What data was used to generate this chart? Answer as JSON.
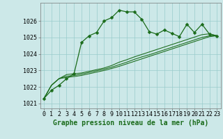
{
  "title": "Graphe pression niveau de la mer (hPa)",
  "bg_color": "#cce8e8",
  "grid_color": "#99cccc",
  "line_color": "#1a6b1a",
  "xlim": [
    -0.5,
    23.5
  ],
  "ylim": [
    1020.7,
    1027.1
  ],
  "yticks": [
    1021,
    1022,
    1023,
    1024,
    1025,
    1026
  ],
  "xticks": [
    0,
    1,
    2,
    3,
    4,
    5,
    6,
    7,
    8,
    9,
    10,
    11,
    12,
    13,
    14,
    15,
    16,
    17,
    18,
    19,
    20,
    21,
    22,
    23
  ],
  "series_main": [
    1021.3,
    1021.8,
    1022.1,
    1022.5,
    1022.8,
    1024.7,
    1025.1,
    1025.3,
    1026.0,
    1026.2,
    1026.65,
    1026.55,
    1026.55,
    1026.1,
    1025.35,
    1025.2,
    1025.45,
    1025.25,
    1025.05,
    1025.8,
    1025.3,
    1025.8,
    1025.2,
    1025.1
  ],
  "series_trend1": [
    1021.3,
    1022.1,
    1022.5,
    1022.75,
    1022.8,
    1022.85,
    1022.95,
    1023.05,
    1023.15,
    1023.3,
    1023.5,
    1023.65,
    1023.82,
    1023.97,
    1024.12,
    1024.27,
    1024.42,
    1024.57,
    1024.72,
    1024.87,
    1025.02,
    1025.17,
    1025.22,
    1025.1
  ],
  "series_trend2": [
    1021.3,
    1022.1,
    1022.5,
    1022.65,
    1022.7,
    1022.78,
    1022.88,
    1022.98,
    1023.08,
    1023.2,
    1023.35,
    1023.5,
    1023.67,
    1023.82,
    1023.95,
    1024.1,
    1024.25,
    1024.4,
    1024.55,
    1024.7,
    1024.85,
    1025.0,
    1025.1,
    1025.1
  ],
  "series_trend3": [
    1021.3,
    1022.1,
    1022.5,
    1022.58,
    1022.63,
    1022.7,
    1022.8,
    1022.9,
    1023.0,
    1023.12,
    1023.25,
    1023.4,
    1023.55,
    1023.7,
    1023.85,
    1024.0,
    1024.15,
    1024.3,
    1024.45,
    1024.6,
    1024.75,
    1024.9,
    1025.05,
    1025.1
  ],
  "tick_fontsize": 6,
  "xlabel_fontsize": 7,
  "linewidth": 0.9,
  "markersize": 2.5
}
